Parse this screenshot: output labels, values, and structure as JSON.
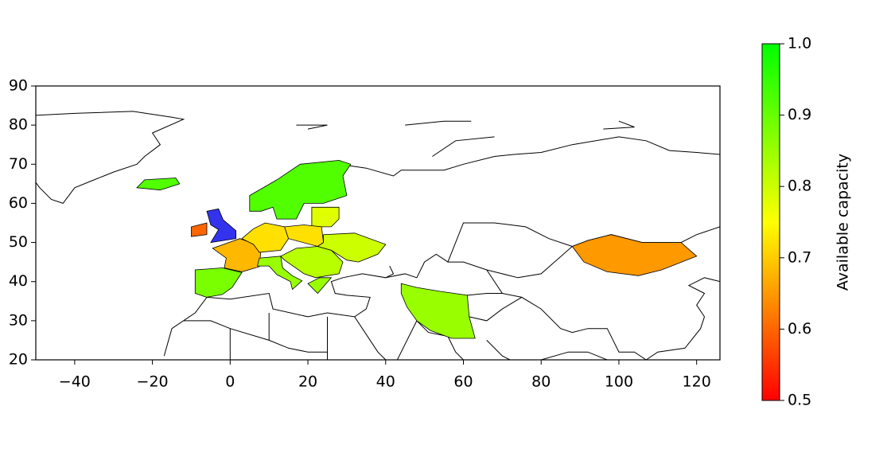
{
  "chart_data": {
    "type": "map",
    "xlim": [
      -50,
      126
    ],
    "ylim": [
      20,
      90
    ],
    "xticks": [
      {
        "value": -40,
        "label": "−40"
      },
      {
        "value": -20,
        "label": "−20"
      },
      0,
      20,
      40,
      60,
      80,
      100,
      120
    ],
    "yticks": [
      20,
      30,
      40,
      50,
      60,
      70,
      80,
      90
    ],
    "values": [
      0.92,
      0.6,
      0.92,
      0.78,
      0.68,
      0.88,
      0.72,
      0.72,
      0.85,
      0.82,
      0.8,
      0.85,
      0.85,
      0.65
    ],
    "colorbar": {
      "label": "Available capacity",
      "lim": [
        0.5,
        1.0
      ],
      "ticks": [
        0.5,
        0.6,
        0.7,
        0.8,
        0.9,
        {
          "value": 1.0,
          "label": "1.0"
        }
      ],
      "colors": [
        "#ff0000",
        "#ffff00",
        "#00ff00"
      ]
    }
  }
}
